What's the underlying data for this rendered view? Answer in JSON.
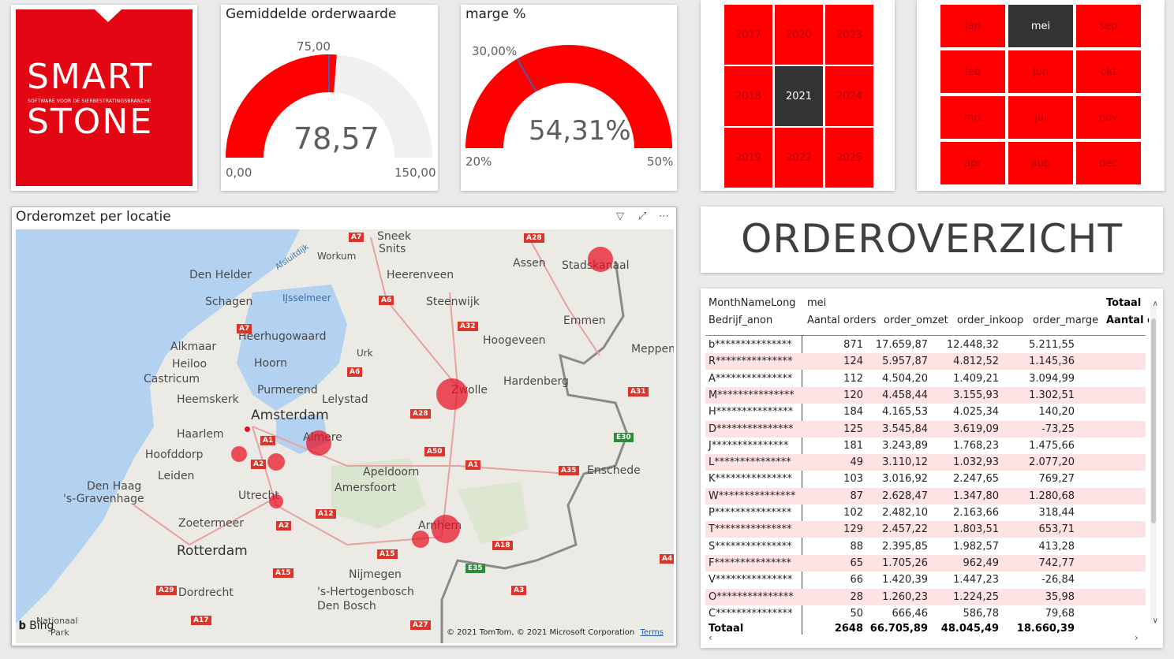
{
  "logo": {
    "word1": "SMART",
    "tagline": "SOFTWARE VOOR DE SIERBESTRATINGSBRANCHE",
    "word2": "STONE",
    "brand_color": "#e30613"
  },
  "gauge_orderwaarde": {
    "title": "Gemiddelde orderwaarde",
    "value": "78,57",
    "value_num": 78.57,
    "min": "0,00",
    "max": "150,00",
    "target": "75,00",
    "min_num": 0,
    "max_num": 150,
    "target_num": 75
  },
  "gauge_marge": {
    "title": "marge %",
    "value": "54,31%",
    "value_num": 54.31,
    "min": "20%",
    "max": "50%",
    "target": "30,00%",
    "min_num": 20,
    "max_num": 50,
    "target_num": 30
  },
  "year_slicer": {
    "items": [
      "2017",
      "2020",
      "2023",
      "2018",
      "2021",
      "2024",
      "2019",
      "2022",
      "2025"
    ],
    "selected": "2021"
  },
  "month_slicer": {
    "items": [
      "jan",
      "mei",
      "sep",
      "feb",
      "jun",
      "okt",
      "mrt",
      "jul",
      "nov",
      "apr",
      "aug",
      "dec"
    ],
    "selected": "mei"
  },
  "map": {
    "title": "Orderomzet per locatie",
    "filter_icon": "filter-icon",
    "focus_icon": "focus-mode-icon",
    "more_icon": "more-options-icon",
    "attribution": "© 2021 TomTom, © 2021 Microsoft Corporation",
    "terms": "Terms",
    "bing": "Bing",
    "places": [
      "Sneek",
      "Snits",
      "Workum",
      "Den Helder",
      "Heerenveen",
      "Assen",
      "Stadskanaal",
      "Schagen",
      "IJsselmeer",
      "Steenwijk",
      "Emmen",
      "Heerhugowaard",
      "Hoogeveen",
      "Alkmaar",
      "Heiloo",
      "Hoorn",
      "Urk",
      "Meppen",
      "Castricum",
      "Purmerend",
      "Hardenberg",
      "Heemskerk",
      "Lelystad",
      "Zwolle",
      "Amsterdam",
      "Haarlem",
      "Almere",
      "Hoofddorp",
      "Apeldoorn",
      "Enschede",
      "Leiden",
      "Den Haag",
      "'s-Gravenhage",
      "Amersfoort",
      "Utrecht",
      "Zoetermeer",
      "Rotterdam",
      "Arnhem",
      "Nijmegen",
      "Dordrecht",
      "'s-Hertogenbosch",
      "Den Bosch",
      "Nationaal",
      "Park",
      "Afsluitdijk"
    ],
    "roads": [
      "A7",
      "A28",
      "A6",
      "A32",
      "A7",
      "A6",
      "A31",
      "A28",
      "A1",
      "A2",
      "A50",
      "A1",
      "A35",
      "E30",
      "A12",
      "A2",
      "A15",
      "A18",
      "E35",
      "A3",
      "A15",
      "A29",
      "A17",
      "A27",
      "A4"
    ]
  },
  "page_title": "ORDEROVERZICHT",
  "table": {
    "header_row1": [
      "MonthNameLong",
      "mei",
      "Totaal"
    ],
    "header_row2": [
      "Bedrijf_anon",
      "Aantal orders",
      "order_omzet",
      "order_inkoop",
      "order_marge",
      "Aantal o"
    ],
    "rows": [
      [
        "b***************",
        "871",
        "17.659,87",
        "12.448,32",
        "5.211,55"
      ],
      [
        "R***************",
        "124",
        "5.957,87",
        "4.812,52",
        "1.145,36"
      ],
      [
        "A***************",
        "112",
        "4.504,20",
        "1.409,21",
        "3.094,99"
      ],
      [
        "M***************",
        "120",
        "4.458,44",
        "3.155,93",
        "1.302,51"
      ],
      [
        "H***************",
        "184",
        "4.165,53",
        "4.025,34",
        "140,20"
      ],
      [
        "D***************",
        "125",
        "3.545,84",
        "3.619,09",
        "-73,25"
      ],
      [
        "J***************",
        "181",
        "3.243,89",
        "1.768,23",
        "1.475,66"
      ],
      [
        "L***************",
        "49",
        "3.110,12",
        "1.032,93",
        "2.077,20"
      ],
      [
        "K***************",
        "103",
        "3.016,92",
        "2.247,65",
        "769,27"
      ],
      [
        "W***************",
        "87",
        "2.628,47",
        "1.347,80",
        "1.280,68"
      ],
      [
        "P***************",
        "102",
        "2.482,10",
        "2.163,66",
        "318,44"
      ],
      [
        "T***************",
        "129",
        "2.457,22",
        "1.803,51",
        "653,71"
      ],
      [
        "S***************",
        "88",
        "2.395,85",
        "1.982,57",
        "413,28"
      ],
      [
        "F***************",
        "65",
        "1.705,26",
        "962,49",
        "742,77"
      ],
      [
        "V***************",
        "66",
        "1.420,39",
        "1.447,23",
        "-26,84"
      ],
      [
        "O***************",
        "28",
        "1.260,23",
        "1.224,25",
        "35,98"
      ],
      [
        "C***************",
        "50",
        "666,46",
        "586,78",
        "79,68"
      ]
    ],
    "total": [
      "Totaal",
      "2648",
      "66.705,89",
      "48.045,49",
      "18.660,39"
    ]
  },
  "colors": {
    "accent": "#ff0000",
    "selected": "#333333",
    "bubble": "#e81123",
    "row_alt": "#fde3e3"
  }
}
